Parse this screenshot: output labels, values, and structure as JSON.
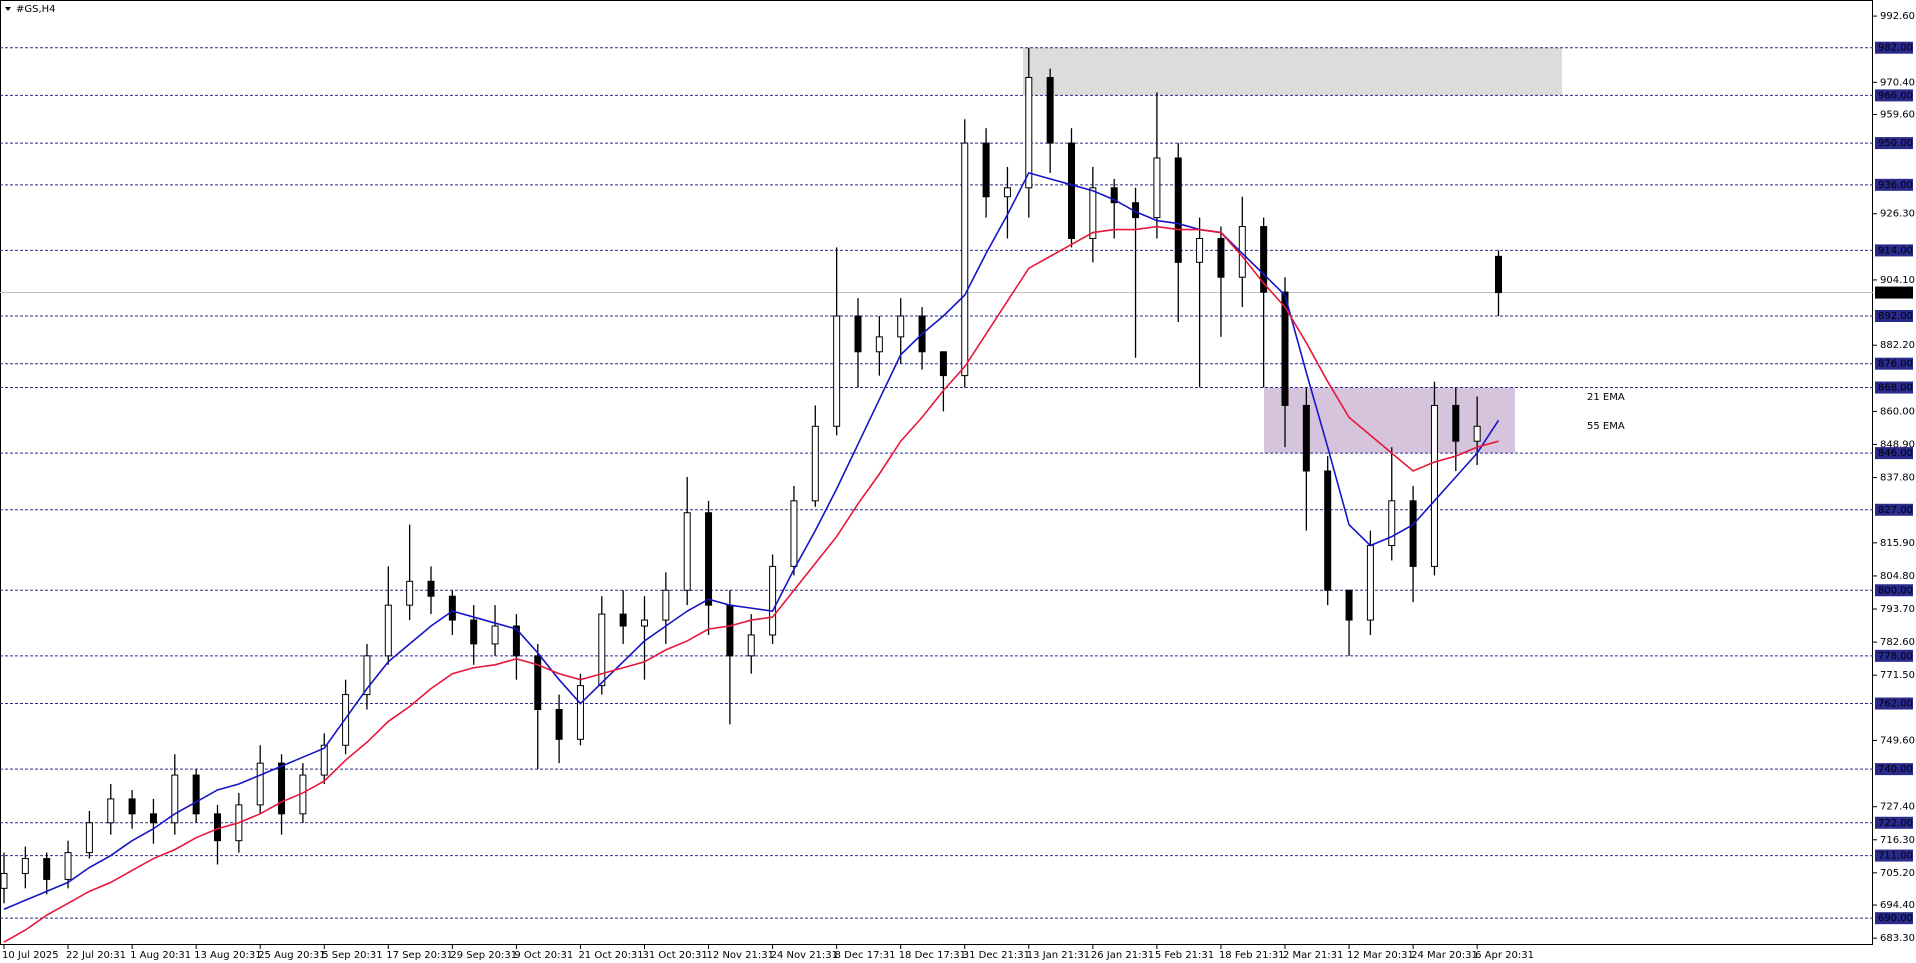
{
  "chart_data": {
    "type": "candlestick",
    "title": "#GS,H4",
    "categories": [
      "10 Jul 2025",
      null,
      null,
      "22 Jul 20:31",
      null,
      null,
      "1 Aug 20:31",
      null,
      null,
      "13 Aug 20:31",
      null,
      null,
      "25 Aug 20:31",
      null,
      null,
      "5 Sep 20:31",
      null,
      null,
      "17 Sep 20:31",
      null,
      null,
      "29 Sep 20:31",
      null,
      null,
      "9 Oct 20:31",
      null,
      null,
      "21 Oct 20:31",
      null,
      null,
      "31 Oct 20:31",
      null,
      null,
      "12 Nov 21:31",
      null,
      null,
      "24 Nov 21:31",
      null,
      null,
      "8 Dec 17:31",
      null,
      null,
      "18 Dec 17:31",
      null,
      null,
      "31 Dec 21:31",
      null,
      null,
      "13 Jan 21:31",
      null,
      null,
      "26 Jan 21:31",
      null,
      null,
      "5 Feb 21:31",
      null,
      null,
      "18 Feb 21:31",
      null,
      null,
      "2 Mar 21:31",
      null,
      null,
      "12 Mar 20:31",
      null,
      null,
      "24 Mar 20:31",
      null,
      null,
      "6 Apr 20:31",
      null
    ],
    "open": [
      700,
      705,
      710,
      703,
      712,
      722,
      730,
      725,
      722,
      738,
      725,
      716,
      728,
      742,
      725,
      738,
      748,
      765,
      778,
      795,
      803,
      798,
      790,
      782,
      788,
      778,
      760,
      750,
      768,
      792,
      788,
      790,
      800,
      826,
      795,
      778,
      785,
      808,
      830,
      855,
      892,
      880,
      885,
      892,
      880,
      872,
      950,
      932,
      935,
      972,
      950,
      918,
      935,
      930,
      925,
      945,
      910,
      918,
      905,
      922,
      900,
      862,
      840,
      800,
      790,
      815,
      830,
      808,
      862,
      850,
      912
    ],
    "high": [
      712,
      714,
      712,
      716,
      726,
      735,
      733,
      730,
      745,
      740,
      728,
      732,
      748,
      745,
      742,
      752,
      770,
      782,
      808,
      822,
      808,
      800,
      795,
      795,
      792,
      782,
      765,
      772,
      798,
      800,
      798,
      806,
      838,
      830,
      800,
      792,
      812,
      835,
      862,
      915,
      898,
      892,
      898,
      895,
      880,
      958,
      955,
      942,
      982,
      975,
      955,
      942,
      938,
      935,
      967,
      950,
      925,
      922,
      932,
      925,
      905,
      868,
      845,
      800,
      820,
      848,
      835,
      870,
      868,
      865,
      914
    ],
    "low": [
      695,
      700,
      698,
      700,
      710,
      718,
      720,
      715,
      718,
      722,
      708,
      712,
      725,
      718,
      722,
      735,
      745,
      760,
      775,
      790,
      792,
      785,
      775,
      778,
      770,
      740,
      742,
      748,
      765,
      782,
      770,
      782,
      795,
      785,
      755,
      772,
      782,
      805,
      828,
      852,
      868,
      872,
      876,
      874,
      860,
      868,
      925,
      918,
      925,
      940,
      915,
      910,
      918,
      878,
      918,
      890,
      868,
      885,
      895,
      868,
      848,
      820,
      795,
      778,
      785,
      810,
      796,
      805,
      840,
      842,
      892
    ],
    "close": [
      705,
      710,
      703,
      712,
      722,
      730,
      725,
      722,
      738,
      725,
      716,
      728,
      742,
      725,
      738,
      748,
      765,
      778,
      795,
      803,
      798,
      790,
      782,
      788,
      778,
      760,
      750,
      768,
      792,
      788,
      790,
      800,
      826,
      795,
      778,
      785,
      808,
      830,
      855,
      892,
      880,
      885,
      892,
      880,
      872,
      950,
      932,
      935,
      972,
      950,
      918,
      935,
      930,
      925,
      945,
      910,
      918,
      905,
      922,
      900,
      862,
      840,
      800,
      790,
      815,
      830,
      808,
      862,
      850,
      855,
      899.86
    ],
    "series": [
      {
        "name": "21 EMA",
        "color": "#1515c8",
        "values": [
          693,
          696,
          699,
          702,
          707,
          711,
          716,
          720,
          725,
          729,
          733,
          735,
          738,
          741,
          744,
          747,
          757,
          767,
          776,
          782,
          788,
          793,
          791,
          789,
          787,
          779,
          770,
          762,
          769,
          776,
          783,
          788,
          793,
          797,
          795,
          794,
          793,
          807,
          820,
          834,
          849,
          864,
          879,
          886,
          892,
          899,
          913,
          926,
          940,
          938,
          936,
          934,
          931,
          927,
          924,
          923,
          921,
          920,
          913,
          906,
          899,
          873,
          848,
          822,
          815,
          818,
          822,
          830,
          838,
          846,
          857
        ]
      },
      {
        "name": "55 EMA",
        "color": "#e8173a",
        "values": [
          682,
          686,
          691,
          695,
          699,
          702,
          706,
          710,
          713,
          717,
          720,
          722,
          725,
          729,
          732,
          736,
          743,
          749,
          756,
          761,
          767,
          772,
          774,
          775,
          777,
          775,
          772,
          770,
          772,
          774,
          776,
          780,
          783,
          787,
          788,
          790,
          791,
          800,
          809,
          818,
          829,
          839,
          850,
          858,
          867,
          875,
          886,
          897,
          908,
          912,
          916,
          920,
          921,
          921,
          922,
          921,
          921,
          920,
          912,
          903,
          895,
          883,
          870,
          858,
          852,
          846,
          840,
          843,
          845,
          848,
          850
        ]
      }
    ],
    "ylim": [
      681,
      998
    ],
    "yticks": [
      {
        "value": 992.6,
        "label": "992.60"
      },
      {
        "value": 970.4,
        "label": "970.40"
      },
      {
        "value": 959.6,
        "label": "959.60"
      },
      {
        "value": 926.3,
        "label": "926.30"
      },
      {
        "value": 904.1,
        "label": "904.10"
      },
      {
        "value": 882.2,
        "label": "882.20"
      },
      {
        "value": 860,
        "label": "860.00"
      },
      {
        "value": 848.9,
        "label": "848.90"
      },
      {
        "value": 837.8,
        "label": "837.80"
      },
      {
        "value": 815.9,
        "label": "815.90"
      },
      {
        "value": 804.8,
        "label": "804.80"
      },
      {
        "value": 793.7,
        "label": "793.70"
      },
      {
        "value": 782.6,
        "label": "782.60"
      },
      {
        "value": 771.5,
        "label": "771.50"
      },
      {
        "value": 749.6,
        "label": "749.60"
      },
      {
        "value": 727.4,
        "label": "727.40"
      },
      {
        "value": 716.3,
        "label": "716.30"
      },
      {
        "value": 705.2,
        "label": "705.20"
      },
      {
        "value": 694.4,
        "label": "694.40"
      },
      {
        "value": 683.3,
        "label": "683.30"
      }
    ],
    "levels": [
      {
        "value": 982,
        "label": "982.00"
      },
      {
        "value": 966,
        "label": "966.00"
      },
      {
        "value": 950,
        "label": "950.00"
      },
      {
        "value": 936,
        "label": "936.00"
      },
      {
        "value": 914,
        "label": "914.00"
      },
      {
        "value": 892,
        "label": "892.00"
      },
      {
        "value": 876,
        "label": "876.00"
      },
      {
        "value": 868,
        "label": "868.00"
      },
      {
        "value": 846,
        "label": "846.00"
      },
      {
        "value": 827,
        "label": "827.00"
      },
      {
        "value": 800,
        "label": "800.00"
      },
      {
        "value": 778,
        "label": "778.00"
      },
      {
        "value": 762,
        "label": "762.00"
      },
      {
        "value": 740,
        "label": "740.00"
      },
      {
        "value": 722,
        "label": "722.00"
      },
      {
        "value": 711,
        "label": "711.00"
      },
      {
        "value": 690,
        "label": "690.00"
      }
    ],
    "level_color": "#2a2a8c",
    "current_price": 899.86,
    "zones": [
      {
        "low": 966,
        "high": 982,
        "color": "#dcdcdc"
      },
      {
        "low": 846,
        "high": 868,
        "color": "#d6c3dc"
      }
    ]
  }
}
